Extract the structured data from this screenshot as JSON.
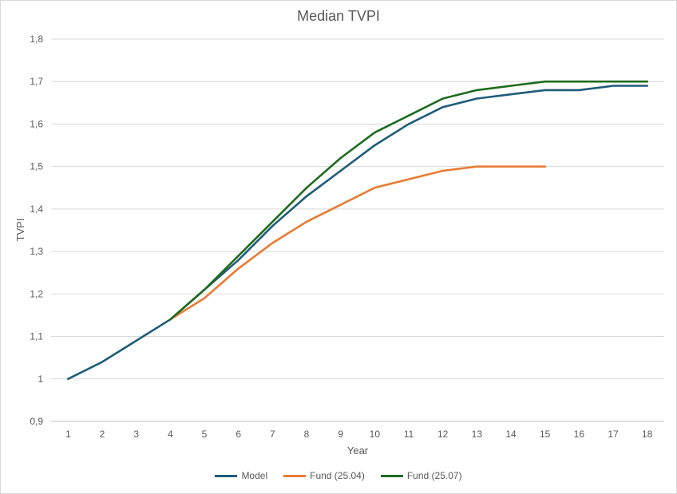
{
  "chart_data": {
    "type": "line",
    "title": "Median TVPI",
    "xlabel": "Year",
    "ylabel": "TVPI",
    "x": [
      1,
      2,
      3,
      4,
      5,
      6,
      7,
      8,
      9,
      10,
      11,
      12,
      13,
      14,
      15,
      16,
      17,
      18
    ],
    "ylim": [
      0.9,
      1.8
    ],
    "yticks": [
      "0,9",
      "1",
      "1,1",
      "1,2",
      "1,3",
      "1,4",
      "1,5",
      "1,6",
      "1,7",
      "1,8"
    ],
    "ytick_values": [
      0.9,
      1.0,
      1.1,
      1.2,
      1.3,
      1.4,
      1.5,
      1.6,
      1.7,
      1.8
    ],
    "grid": "horizontal",
    "legend_position": "bottom",
    "series": [
      {
        "name": "Model",
        "color": "#1f5c7a",
        "x": [
          1,
          2,
          3,
          4,
          5,
          6,
          7,
          8,
          9,
          10,
          11,
          12,
          13,
          14,
          15,
          16,
          17,
          18
        ],
        "values": [
          1.0,
          1.04,
          1.09,
          1.14,
          1.21,
          1.28,
          1.36,
          1.43,
          1.49,
          1.55,
          1.6,
          1.64,
          1.66,
          1.67,
          1.68,
          1.68,
          1.69,
          1.69
        ]
      },
      {
        "name": "Fund (25.04)",
        "color": "#e97b34",
        "x": [
          4,
          5,
          6,
          7,
          8,
          9,
          10,
          11,
          12,
          13,
          14,
          15
        ],
        "values": [
          1.14,
          1.19,
          1.26,
          1.32,
          1.37,
          1.41,
          1.45,
          1.47,
          1.49,
          1.5,
          1.5,
          1.5
        ]
      },
      {
        "name": "Fund (25.07)",
        "color": "#1e6b1e",
        "x": [
          4,
          5,
          6,
          7,
          8,
          9,
          10,
          11,
          12,
          13,
          14,
          15,
          16,
          17,
          18
        ],
        "values": [
          1.14,
          1.21,
          1.29,
          1.37,
          1.45,
          1.52,
          1.58,
          1.62,
          1.66,
          1.68,
          1.69,
          1.7,
          1.7,
          1.7,
          1.7
        ]
      }
    ]
  }
}
